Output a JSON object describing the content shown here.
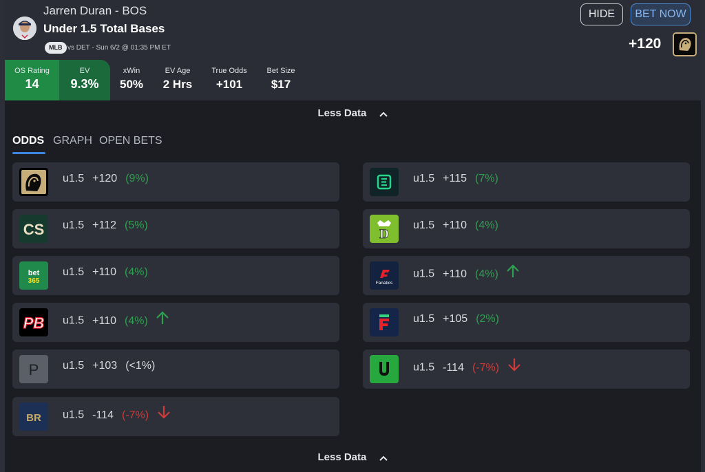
{
  "header": {
    "player": "Jarren Duran - BOS",
    "market": "Under 1.5 Total Bases",
    "league": "MLB",
    "game": "vs DET - Sun 6/2 @ 01:35 PM ET",
    "hide_label": "HIDE",
    "bet_now_label": "BET NOW",
    "best_odds": "+120",
    "best_book_icon": "betmgm-lion-icon"
  },
  "stats": [
    {
      "label": "OS Rating",
      "value": "14"
    },
    {
      "label": "EV",
      "value": "9.3%"
    },
    {
      "label": "xWin",
      "value": "50%"
    },
    {
      "label": "EV Age",
      "value": "2 Hrs"
    },
    {
      "label": "True Odds",
      "value": "+101"
    },
    {
      "label": "Bet Size",
      "value": "$17"
    }
  ],
  "toggle": {
    "label": "Less Data"
  },
  "tabs": [
    {
      "label": "ODDS",
      "active": true
    },
    {
      "label": "GRAPH",
      "active": false
    },
    {
      "label": "OPEN BETS",
      "active": false
    }
  ],
  "odds_left": [
    {
      "book_icon": "betmgm-icon",
      "line": "u1.5",
      "price": "+120",
      "ev": "(9%)",
      "tone": "pos",
      "trend": "none"
    },
    {
      "book_icon": "caesars-icon",
      "line": "u1.5",
      "price": "+112",
      "ev": "(5%)",
      "tone": "pos",
      "trend": "none"
    },
    {
      "book_icon": "bet365-icon",
      "line": "u1.5",
      "price": "+110",
      "ev": "(4%)",
      "tone": "pos",
      "trend": "none"
    },
    {
      "book_icon": "pointsbet-icon",
      "line": "u1.5",
      "price": "+110",
      "ev": "(4%)",
      "tone": "pos",
      "trend": "up"
    },
    {
      "book_icon": "pinnacle-icon",
      "line": "u1.5",
      "price": "+103",
      "ev": "(<1%)",
      "tone": "neu",
      "trend": "none"
    },
    {
      "book_icon": "betrivers-icon",
      "line": "u1.5",
      "price": "-114",
      "ev": "(-7%)",
      "tone": "neg",
      "trend": "down"
    }
  ],
  "odds_right": [
    {
      "book_icon": "espnbet-icon",
      "line": "u1.5",
      "price": "+115",
      "ev": "(7%)",
      "tone": "pos",
      "trend": "none"
    },
    {
      "book_icon": "draftkings-icon",
      "line": "u1.5",
      "price": "+110",
      "ev": "(4%)",
      "tone": "pos",
      "trend": "none"
    },
    {
      "book_icon": "fanatics-icon",
      "line": "u1.5",
      "price": "+110",
      "ev": "(4%)",
      "tone": "pos",
      "trend": "up"
    },
    {
      "book_icon": "fliff-icon",
      "line": "u1.5",
      "price": "+105",
      "ev": "(2%)",
      "tone": "pos",
      "trend": "none"
    },
    {
      "book_icon": "unibet-icon",
      "line": "u1.5",
      "price": "-114",
      "ev": "(-7%)",
      "tone": "neg",
      "trend": "down"
    }
  ],
  "colors": {
    "positive": "#2ea04f",
    "negative": "#d03a3a",
    "accent": "#3f86e0",
    "os_rating_bg": "#1f8b45",
    "ev_bg": "#1a6a3b"
  }
}
